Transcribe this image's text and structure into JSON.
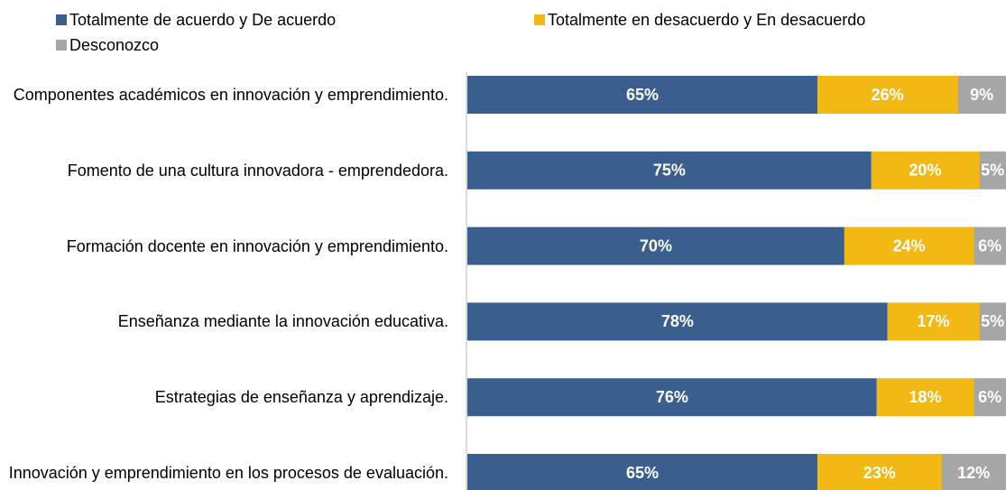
{
  "chart_data": {
    "type": "stacked-bar-horizontal",
    "categories": [
      "Componentes académicos en innovación y emprendimiento.",
      "Fomento de una cultura innovadora - emprendedora.",
      "Formación docente en innovación y emprendimiento.",
      "Enseñanza mediante la innovación educativa.",
      "Estrategias de enseñanza y aprendizaje.",
      "Innovación y emprendimiento en los procesos de evaluación."
    ],
    "series": [
      {
        "name": "Totalmente de acuerdo y De acuerdo",
        "color": "#3a5f8f",
        "values": [
          65,
          75,
          70,
          78,
          76,
          65
        ],
        "value_labels": [
          "65%",
          "75%",
          "70%",
          "78%",
          "76%",
          "65%"
        ]
      },
      {
        "name": "Totalmente en desacuerdo y En desacuerdo",
        "color": "#f2b914",
        "values": [
          26,
          20,
          24,
          17,
          18,
          23
        ],
        "value_labels": [
          "26%",
          "20%",
          "24%",
          "17%",
          "18%",
          "23%"
        ]
      },
      {
        "name": "Desconozco",
        "color": "#a6a6a6",
        "values": [
          9,
          5,
          6,
          5,
          6,
          12
        ],
        "value_labels": [
          "9%",
          "5%",
          "6%",
          "5%",
          "6%",
          "12%"
        ]
      }
    ],
    "xlim": [
      0,
      100
    ]
  }
}
